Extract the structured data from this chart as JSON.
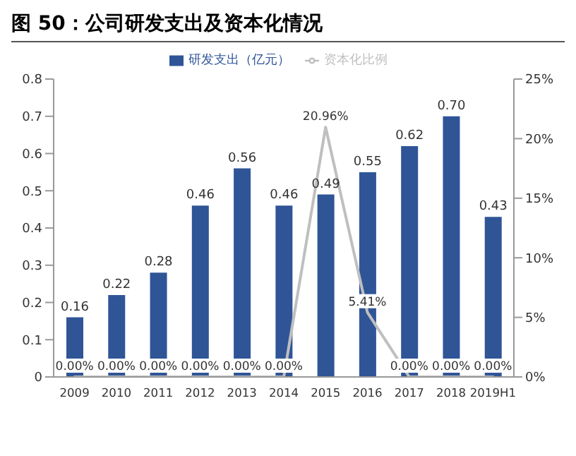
{
  "chart_data": {
    "type": "bar",
    "title": "图 50：公司研发支出及资本化情况",
    "categories": [
      "2009",
      "2010",
      "2011",
      "2012",
      "2013",
      "2014",
      "2015",
      "2016",
      "2017",
      "2018",
      "2019H1"
    ],
    "series": [
      {
        "name": "研发支出（亿元）",
        "color": "#2f5597",
        "values": [
          0.16,
          0.22,
          0.28,
          0.46,
          0.56,
          0.46,
          0.49,
          0.55,
          0.62,
          0.7,
          0.43
        ],
        "value_labels": [
          "0.16",
          "0.22",
          "0.28",
          "0.46",
          "0.56",
          "0.46",
          "0.49",
          "0.55",
          "0.62",
          "0.70",
          "0.43"
        ]
      },
      {
        "name": "资本化比例",
        "type": "line",
        "axis": "y2",
        "color": "#bfbfbf",
        "marker": "none",
        "values": [
          0,
          0,
          0,
          0,
          0,
          0,
          20.96,
          5.41,
          0,
          0,
          0
        ],
        "value_labels": [
          "0.00%",
          "0.00%",
          "0.00%",
          "0.00%",
          "0.00%",
          "0.00%",
          "20.96%",
          "5.41%",
          "0.00%",
          "0.00%",
          "0.00%"
        ]
      }
    ],
    "ylim": [
      0,
      0.8
    ],
    "yticks": [
      0,
      0.1,
      0.2,
      0.3,
      0.4,
      0.5,
      0.6,
      0.7,
      0.8
    ],
    "y2lim": [
      0,
      25
    ],
    "y2ticks": [
      {
        "value": 0,
        "label": "0%"
      },
      {
        "value": 5,
        "label": "5%"
      },
      {
        "value": 10,
        "label": "10%"
      },
      {
        "value": 15,
        "label": "15%"
      },
      {
        "value": 20,
        "label": "20%"
      },
      {
        "value": 25,
        "label": "25%"
      }
    ],
    "legend": "top",
    "grid": false
  }
}
